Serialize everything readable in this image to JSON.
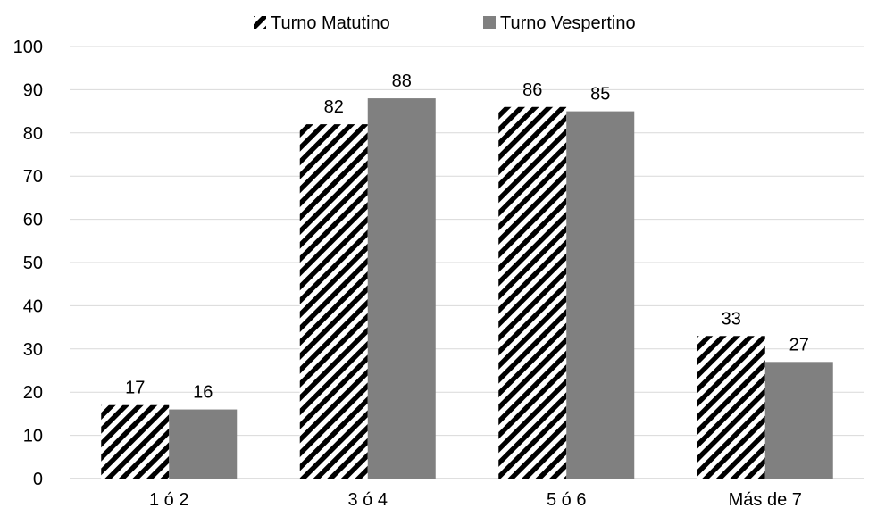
{
  "chart_data": {
    "type": "bar",
    "categories": [
      "1 ó 2",
      "3 ó 4",
      "5 ó 6",
      "Más de 7"
    ],
    "series": [
      {
        "name": "Turno Matutino",
        "values": [
          17,
          82,
          86,
          33
        ],
        "pattern": "diagonal-stripes",
        "color": "#000000"
      },
      {
        "name": "Turno Vespertino",
        "values": [
          16,
          88,
          85,
          27
        ],
        "pattern": "solid",
        "color": "#808080"
      }
    ],
    "ylim": [
      0,
      100
    ],
    "yticks": [
      0,
      10,
      20,
      30,
      40,
      50,
      60,
      70,
      80,
      90,
      100
    ],
    "grid": true,
    "gridColor": "#d9d9d9",
    "legend_position": "top",
    "data_labels": true
  }
}
